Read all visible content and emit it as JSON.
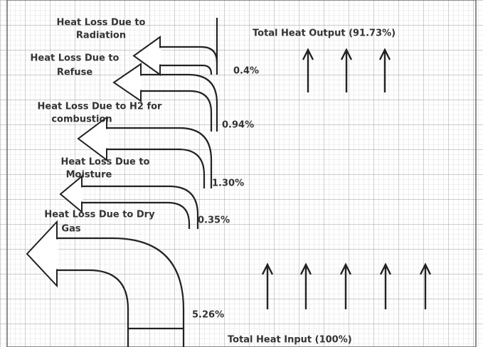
{
  "output": {
    "label": "Total Heat Output (91.73%)"
  },
  "input": {
    "label": "Total Heat Input (100%)"
  },
  "losses": [
    {
      "lines": [
        "Heat Loss Due to",
        "Radiation"
      ],
      "value_label": "0.4%"
    },
    {
      "lines": [
        "Heat Loss Due to",
        "Refuse"
      ],
      "value_label": "0.94%"
    },
    {
      "lines": [
        "Heat Loss Due to H2 for",
        "combustion"
      ],
      "value_label": "1.30%"
    },
    {
      "lines": [
        "Heat Loss Due to",
        "Moisture"
      ],
      "value_label": "0.35%"
    },
    {
      "lines": [
        "Heat Loss Due to Dry",
        "Gas"
      ],
      "value_label": "5.26%"
    }
  ]
}
